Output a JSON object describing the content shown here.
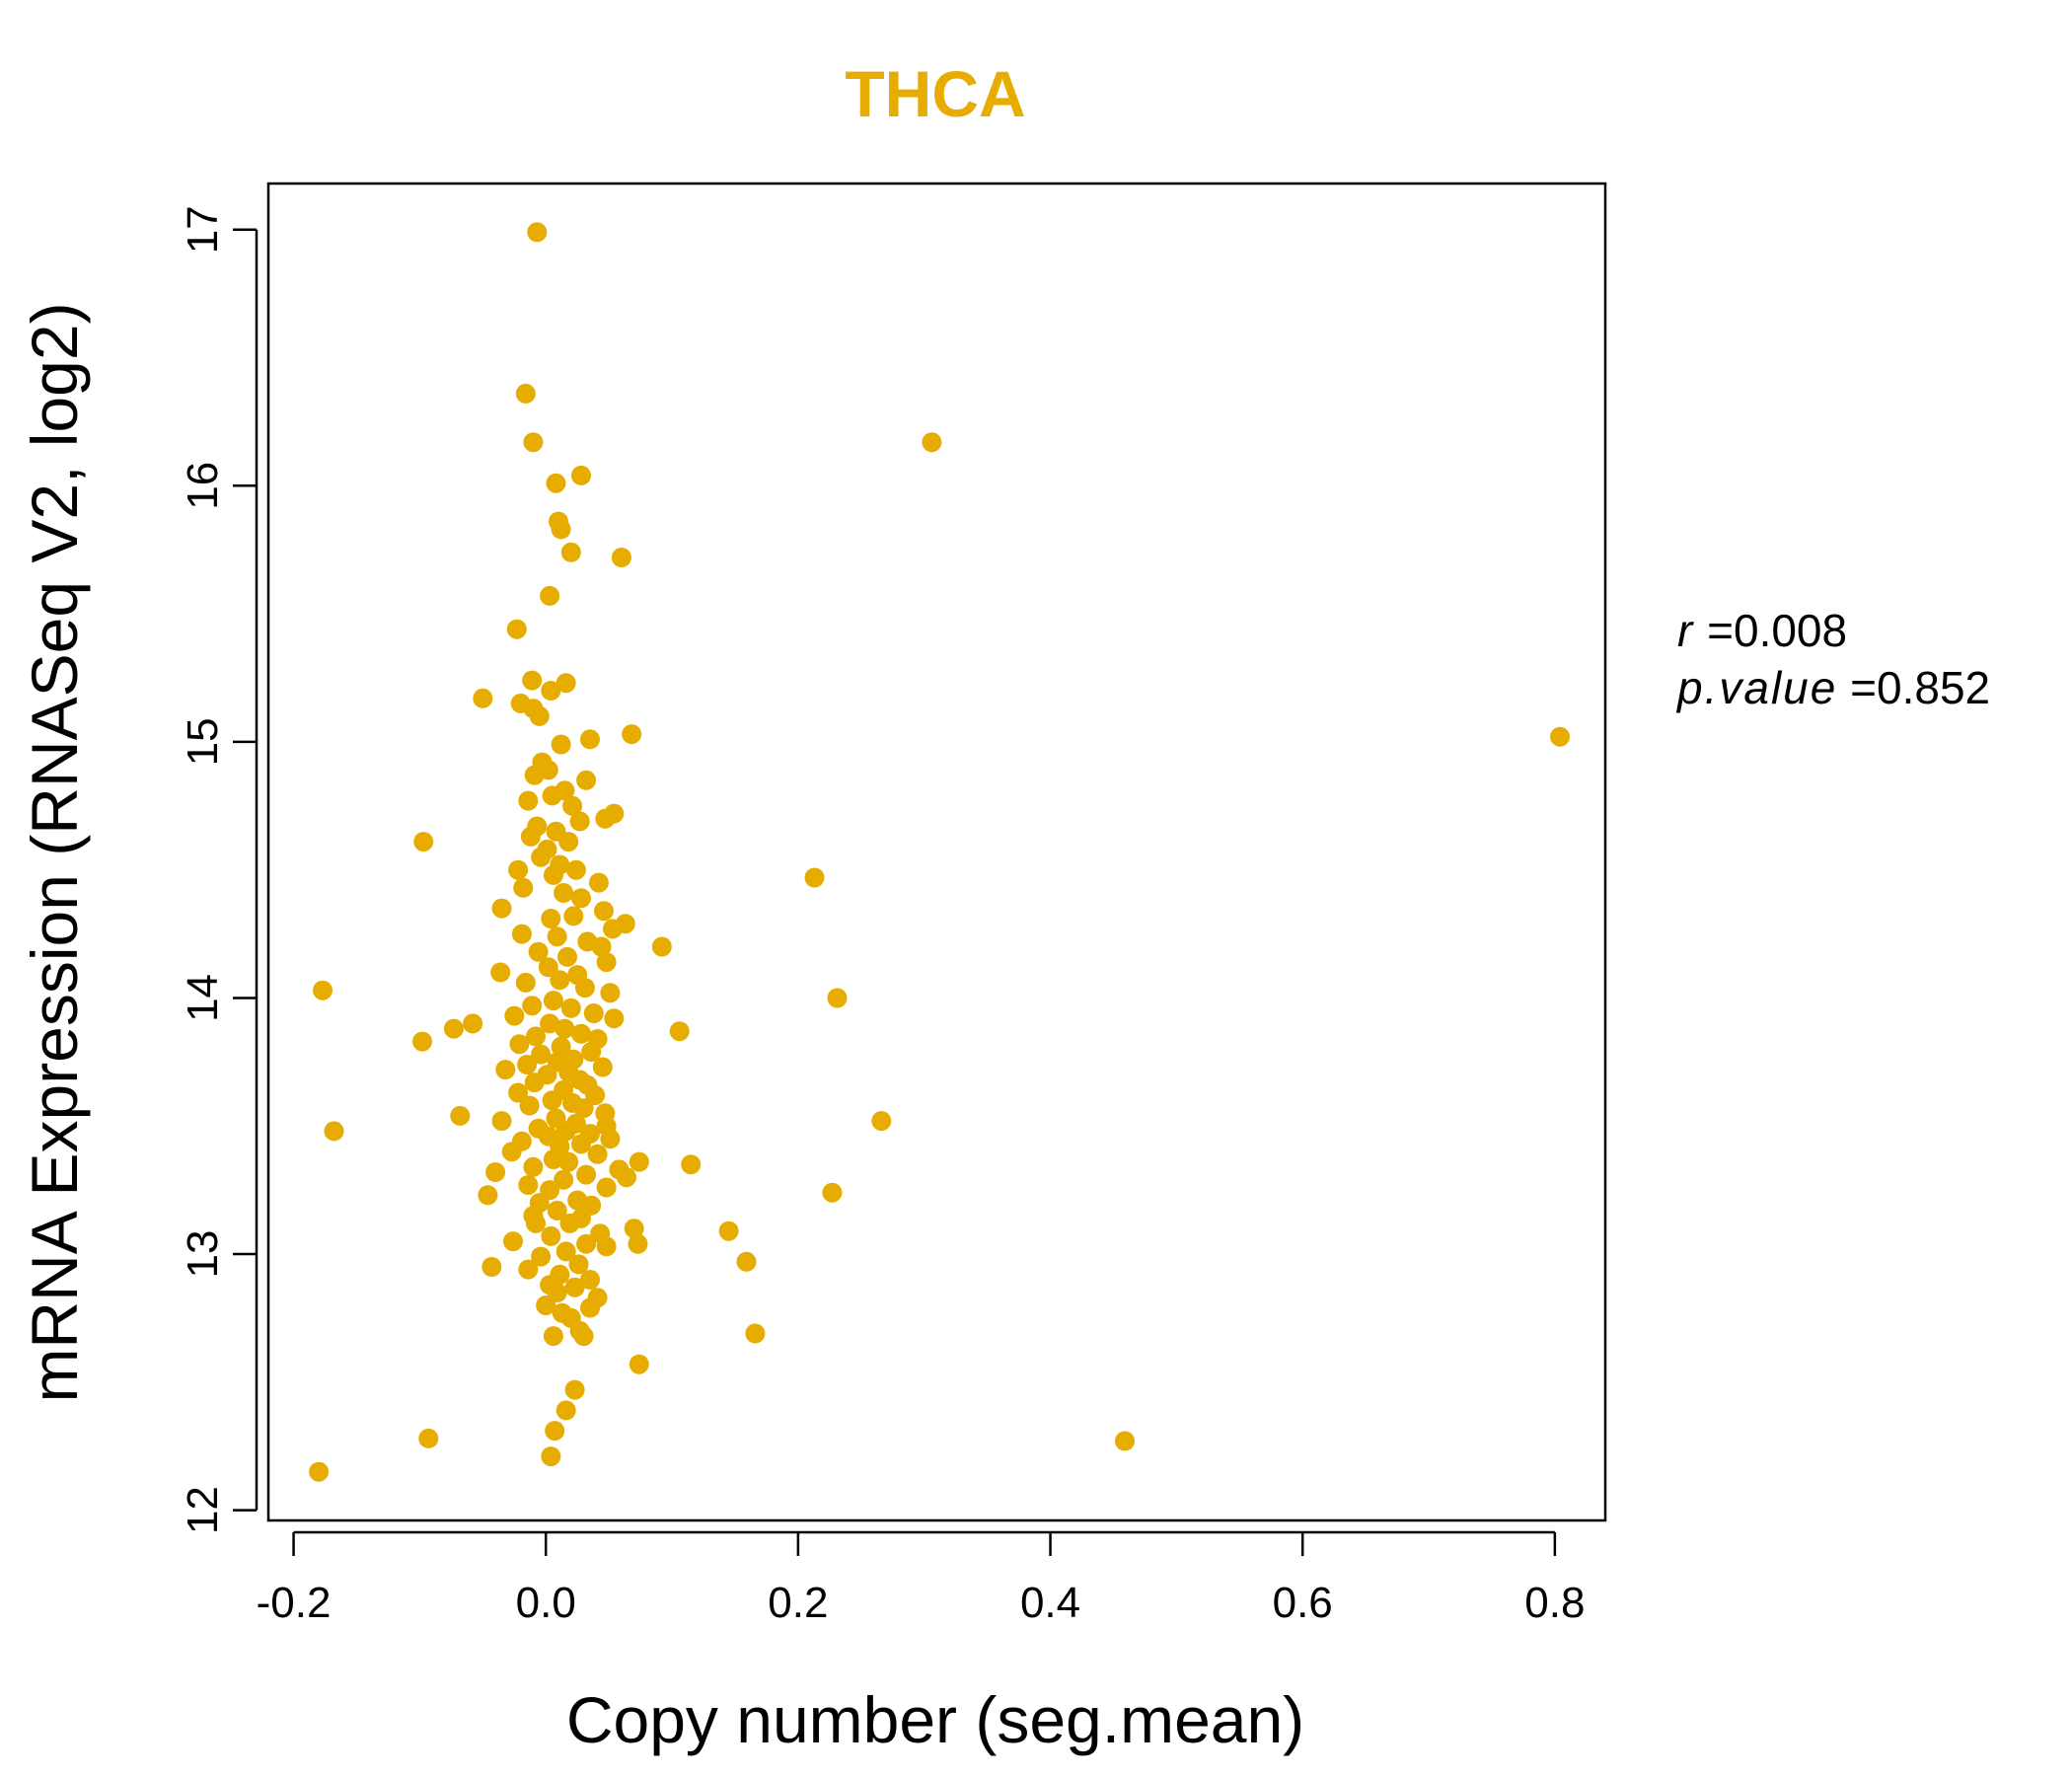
{
  "chart_data": {
    "type": "scatter",
    "title": "THCA",
    "title_color": "#E6AC00",
    "point_color": "#E6AC00",
    "xlabel": "Copy number (seg.mean)",
    "ylabel": "mRNA Expression (RNASeq V2, log2)",
    "xlim": [
      -0.22,
      0.84
    ],
    "ylim": [
      11.96,
      17.18
    ],
    "xticks": [
      -0.2,
      0.0,
      0.2,
      0.4,
      0.6,
      0.8
    ],
    "xtick_labels": [
      "-0.2",
      "0.0",
      "0.2",
      "0.4",
      "0.6",
      "0.8"
    ],
    "yticks": [
      12,
      13,
      14,
      15,
      16,
      17
    ],
    "ytick_labels": [
      "12",
      "13",
      "14",
      "15",
      "16",
      "17"
    ],
    "grid": false,
    "legend": "none",
    "points": [
      [
        -0.007,
        16.99
      ],
      [
        -0.016,
        16.36
      ],
      [
        -0.01,
        16.17
      ],
      [
        0.028,
        16.04
      ],
      [
        0.008,
        16.01
      ],
      [
        0.01,
        15.86
      ],
      [
        0.012,
        15.83
      ],
      [
        0.02,
        15.74
      ],
      [
        0.06,
        15.72
      ],
      [
        0.003,
        15.57
      ],
      [
        -0.023,
        15.44
      ],
      [
        -0.011,
        15.24
      ],
      [
        0.016,
        15.23
      ],
      [
        0.004,
        15.2
      ],
      [
        -0.05,
        15.17
      ],
      [
        -0.02,
        15.15
      ],
      [
        -0.01,
        15.13
      ],
      [
        -0.005,
        15.1
      ],
      [
        0.068,
        15.03
      ],
      [
        0.035,
        15.01
      ],
      [
        0.012,
        14.99
      ],
      [
        -0.003,
        14.92
      ],
      [
        0.002,
        14.89
      ],
      [
        -0.009,
        14.87
      ],
      [
        0.032,
        14.85
      ],
      [
        0.015,
        14.81
      ],
      [
        0.005,
        14.79
      ],
      [
        -0.014,
        14.77
      ],
      [
        0.021,
        14.75
      ],
      [
        0.054,
        14.72
      ],
      [
        0.047,
        14.7
      ],
      [
        0.027,
        14.69
      ],
      [
        -0.007,
        14.67
      ],
      [
        0.008,
        14.65
      ],
      [
        -0.012,
        14.63
      ],
      [
        0.018,
        14.61
      ],
      [
        -0.097,
        14.61
      ],
      [
        0.001,
        14.58
      ],
      [
        -0.004,
        14.55
      ],
      [
        0.011,
        14.52
      ],
      [
        0.024,
        14.5
      ],
      [
        -0.022,
        14.5
      ],
      [
        0.006,
        14.48
      ],
      [
        0.213,
        14.47
      ],
      [
        0.042,
        14.45
      ],
      [
        -0.018,
        14.43
      ],
      [
        0.014,
        14.41
      ],
      [
        0.028,
        14.39
      ],
      [
        -0.035,
        14.35
      ],
      [
        0.046,
        14.34
      ],
      [
        0.022,
        14.32
      ],
      [
        0.004,
        14.31
      ],
      [
        0.063,
        14.29
      ],
      [
        0.053,
        14.27
      ],
      [
        -0.019,
        14.25
      ],
      [
        0.009,
        14.24
      ],
      [
        0.033,
        14.22
      ],
      [
        0.044,
        14.2
      ],
      [
        0.092,
        14.2
      ],
      [
        -0.006,
        14.18
      ],
      [
        0.017,
        14.16
      ],
      [
        0.048,
        14.14
      ],
      [
        0.002,
        14.12
      ],
      [
        -0.036,
        14.1
      ],
      [
        0.025,
        14.09
      ],
      [
        0.011,
        14.07
      ],
      [
        -0.016,
        14.06
      ],
      [
        0.031,
        14.04
      ],
      [
        -0.177,
        14.03
      ],
      [
        0.051,
        14.02
      ],
      [
        0.231,
        14.0
      ],
      [
        0.006,
        13.99
      ],
      [
        -0.011,
        13.97
      ],
      [
        0.02,
        13.96
      ],
      [
        0.038,
        13.94
      ],
      [
        -0.025,
        13.93
      ],
      [
        0.054,
        13.92
      ],
      [
        -0.058,
        13.9
      ],
      [
        0.003,
        13.9
      ],
      [
        0.015,
        13.88
      ],
      [
        -0.073,
        13.88
      ],
      [
        0.106,
        13.87
      ],
      [
        0.028,
        13.86
      ],
      [
        -0.008,
        13.85
      ],
      [
        0.041,
        13.84
      ],
      [
        -0.098,
        13.83
      ],
      [
        -0.021,
        13.82
      ],
      [
        0.012,
        13.81
      ],
      [
        0.036,
        13.79
      ],
      [
        -0.004,
        13.78
      ],
      [
        0.022,
        13.76
      ],
      [
        0.009,
        13.75
      ],
      [
        -0.015,
        13.74
      ],
      [
        0.045,
        13.73
      ],
      [
        -0.032,
        13.72
      ],
      [
        0.018,
        13.71
      ],
      [
        0.001,
        13.7
      ],
      [
        0.027,
        13.68
      ],
      [
        -0.009,
        13.67
      ],
      [
        0.033,
        13.66
      ],
      [
        0.014,
        13.64
      ],
      [
        -0.022,
        13.63
      ],
      [
        0.039,
        13.62
      ],
      [
        0.005,
        13.6
      ],
      [
        0.021,
        13.59
      ],
      [
        -0.013,
        13.58
      ],
      [
        0.03,
        13.57
      ],
      [
        0.047,
        13.55
      ],
      [
        -0.068,
        13.54
      ],
      [
        0.008,
        13.53
      ],
      [
        0.266,
        13.52
      ],
      [
        -0.035,
        13.52
      ],
      [
        0.024,
        13.51
      ],
      [
        0.048,
        13.5
      ],
      [
        -0.006,
        13.49
      ],
      [
        0.016,
        13.48
      ],
      [
        -0.168,
        13.48
      ],
      [
        0.035,
        13.47
      ],
      [
        0.002,
        13.46
      ],
      [
        0.051,
        13.45
      ],
      [
        -0.019,
        13.44
      ],
      [
        0.028,
        13.43
      ],
      [
        0.011,
        13.42
      ],
      [
        -0.027,
        13.4
      ],
      [
        0.041,
        13.39
      ],
      [
        0.006,
        13.37
      ],
      [
        0.074,
        13.36
      ],
      [
        0.018,
        13.36
      ],
      [
        0.115,
        13.35
      ],
      [
        -0.01,
        13.34
      ],
      [
        0.058,
        13.33
      ],
      [
        -0.04,
        13.32
      ],
      [
        0.032,
        13.31
      ],
      [
        0.064,
        13.3
      ],
      [
        0.014,
        13.29
      ],
      [
        -0.014,
        13.27
      ],
      [
        0.048,
        13.26
      ],
      [
        0.003,
        13.25
      ],
      [
        0.227,
        13.24
      ],
      [
        -0.046,
        13.23
      ],
      [
        0.025,
        13.21
      ],
      [
        -0.005,
        13.2
      ],
      [
        0.036,
        13.19
      ],
      [
        0.009,
        13.17
      ],
      [
        -0.01,
        13.15
      ],
      [
        0.028,
        13.14
      ],
      [
        0.019,
        13.12
      ],
      [
        -0.008,
        13.12
      ],
      [
        0.07,
        13.1
      ],
      [
        0.145,
        13.09
      ],
      [
        0.043,
        13.08
      ],
      [
        0.004,
        13.07
      ],
      [
        -0.026,
        13.05
      ],
      [
        0.073,
        13.04
      ],
      [
        0.032,
        13.04
      ],
      [
        0.048,
        13.03
      ],
      [
        0.016,
        13.01
      ],
      [
        -0.004,
        12.99
      ],
      [
        0.159,
        12.97
      ],
      [
        0.026,
        12.96
      ],
      [
        -0.043,
        12.95
      ],
      [
        -0.014,
        12.94
      ],
      [
        0.011,
        12.92
      ],
      [
        0.035,
        12.9
      ],
      [
        0.003,
        12.88
      ],
      [
        0.023,
        12.87
      ],
      [
        0.009,
        12.85
      ],
      [
        0.041,
        12.83
      ],
      [
        0.0,
        12.8
      ],
      [
        0.035,
        12.79
      ],
      [
        0.013,
        12.77
      ],
      [
        0.02,
        12.75
      ],
      [
        0.027,
        12.7
      ],
      [
        0.006,
        12.68
      ],
      [
        0.03,
        12.68
      ],
      [
        0.166,
        12.69
      ],
      [
        0.074,
        12.57
      ],
      [
        0.023,
        12.47
      ],
      [
        0.016,
        12.39
      ],
      [
        0.007,
        12.31
      ],
      [
        -0.093,
        12.28
      ],
      [
        0.459,
        12.27
      ],
      [
        0.004,
        12.21
      ],
      [
        -0.18,
        12.15
      ],
      [
        0.306,
        16.17
      ],
      [
        0.804,
        15.02
      ]
    ]
  },
  "stats": {
    "r_label": "r",
    "r_value": "0.008",
    "p_label": "p.value",
    "p_value": "0.852"
  }
}
